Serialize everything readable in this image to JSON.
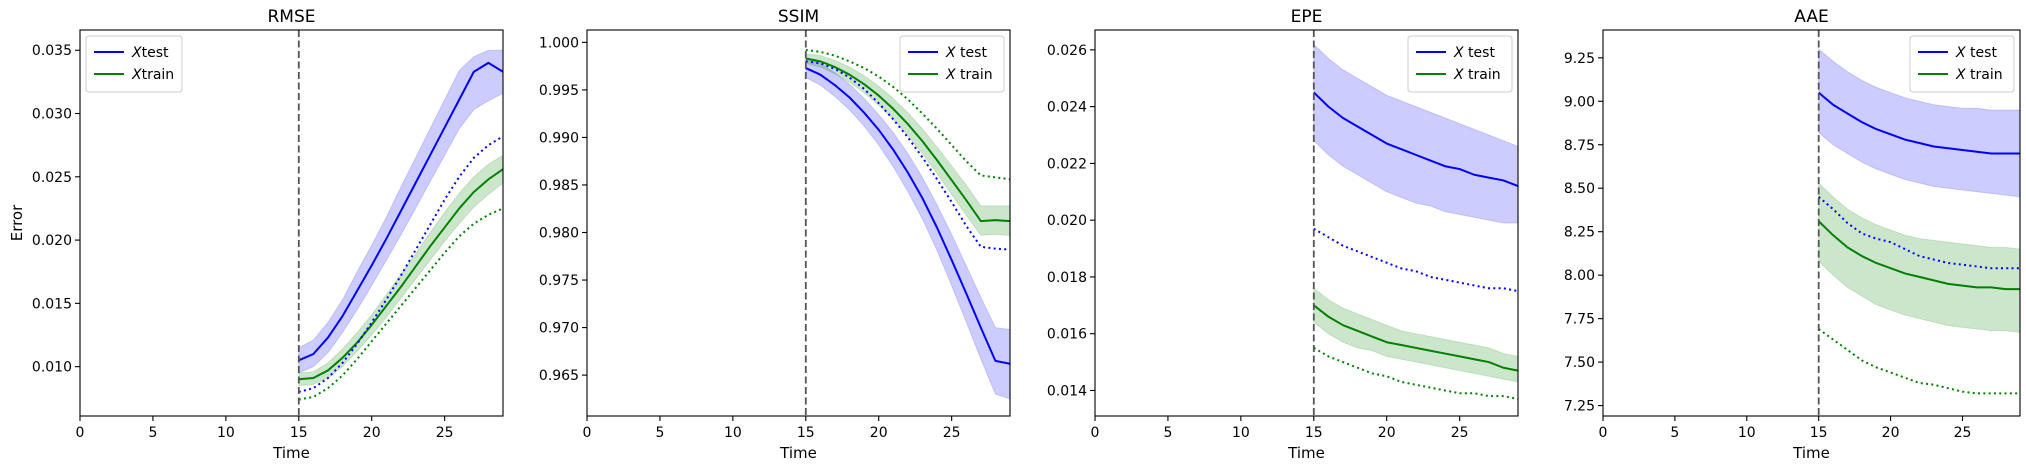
{
  "chart_data": [
    {
      "type": "line",
      "title": "RMSE",
      "xlabel": "Time",
      "ylabel": "Error",
      "xlim": [
        0,
        29
      ],
      "ylim": [
        0.0061,
        0.0366
      ],
      "xticks": [
        "0",
        "5",
        "10",
        "15",
        "20",
        "25"
      ],
      "yticks": [
        "0.010",
        "0.015",
        "0.020",
        "0.025",
        "0.030",
        "0.035"
      ],
      "legend_position": "upper-left",
      "vline_x": 15,
      "x": [
        15,
        16,
        17,
        18,
        19,
        20,
        21,
        22,
        23,
        24,
        25,
        26,
        27,
        28,
        29
      ],
      "series": [
        {
          "name": "Xtest",
          "label_style": "italic-x",
          "color": "#0000ff",
          "style": "solid",
          "values": [
            0.0105,
            0.011,
            0.0123,
            0.014,
            0.016,
            0.018,
            0.0201,
            0.0223,
            0.0245,
            0.0267,
            0.0289,
            0.0311,
            0.0333,
            0.034,
            0.0333
          ],
          "band_low": [
            0.0095,
            0.01,
            0.0111,
            0.0127,
            0.0145,
            0.0164,
            0.0184,
            0.0204,
            0.0225,
            0.0246,
            0.0267,
            0.0288,
            0.0303,
            0.031,
            0.0316
          ],
          "band_high": [
            0.0115,
            0.0121,
            0.0135,
            0.0153,
            0.0175,
            0.0196,
            0.0218,
            0.0242,
            0.0265,
            0.0288,
            0.0311,
            0.0334,
            0.0345,
            0.035,
            0.035
          ]
        },
        {
          "name": "Xtrain",
          "label_style": "italic-x",
          "color": "#008000",
          "style": "solid",
          "values": [
            0.009,
            0.0091,
            0.0097,
            0.0107,
            0.0119,
            0.0133,
            0.0148,
            0.0163,
            0.0179,
            0.0195,
            0.021,
            0.0225,
            0.0238,
            0.0248,
            0.0256
          ],
          "band_low": [
            0.0085,
            0.0086,
            0.0091,
            0.01,
            0.0112,
            0.0125,
            0.0139,
            0.0154,
            0.0169,
            0.0184,
            0.0199,
            0.0213,
            0.0226,
            0.0236,
            0.0245
          ],
          "band_high": [
            0.0095,
            0.0096,
            0.0103,
            0.0114,
            0.0127,
            0.0141,
            0.0157,
            0.0173,
            0.0189,
            0.0206,
            0.0222,
            0.0237,
            0.025,
            0.026,
            0.0267
          ]
        },
        {
          "name": "",
          "color": "#0000ff",
          "style": "dotted",
          "values": [
            0.008,
            0.0083,
            0.0091,
            0.0103,
            0.0118,
            0.0135,
            0.0153,
            0.0172,
            0.0192,
            0.0212,
            0.0232,
            0.025,
            0.0265,
            0.0275,
            0.0282
          ]
        },
        {
          "name": "",
          "color": "#008000",
          "style": "dotted",
          "values": [
            0.0074,
            0.0076,
            0.0083,
            0.0093,
            0.0106,
            0.012,
            0.0134,
            0.0148,
            0.0162,
            0.0176,
            0.019,
            0.0203,
            0.0213,
            0.022,
            0.0225
          ]
        }
      ]
    },
    {
      "type": "line",
      "title": "SSIM",
      "xlabel": "Time",
      "ylabel": "",
      "xlim": [
        0,
        29
      ],
      "ylim": [
        0.9607,
        1.0013
      ],
      "xticks": [
        "0",
        "5",
        "10",
        "15",
        "20",
        "25"
      ],
      "yticks": [
        "0.965",
        "0.970",
        "0.975",
        "0.980",
        "0.985",
        "0.990",
        "0.995",
        "1.000"
      ],
      "legend_position": "upper-right",
      "vline_x": 15,
      "x": [
        15,
        16,
        17,
        18,
        19,
        20,
        21,
        22,
        23,
        24,
        25,
        26,
        27,
        28,
        29
      ],
      "series": [
        {
          "name": "X test",
          "label_style": "italic-x",
          "color": "#0000ff",
          "style": "solid",
          "values": [
            0.9973,
            0.9966,
            0.9955,
            0.9942,
            0.9926,
            0.9908,
            0.9887,
            0.9863,
            0.9836,
            0.9805,
            0.9771,
            0.9736,
            0.97,
            0.9665,
            0.9662
          ],
          "band_low": [
            0.9963,
            0.9955,
            0.9943,
            0.9929,
            0.9912,
            0.9892,
            0.9869,
            0.9843,
            0.9814,
            0.9781,
            0.9744,
            0.9706,
            0.9667,
            0.963,
            0.9625
          ],
          "band_high": [
            0.9983,
            0.9978,
            0.9968,
            0.9956,
            0.9941,
            0.9924,
            0.9905,
            0.9883,
            0.9858,
            0.9829,
            0.9798,
            0.9765,
            0.9732,
            0.97,
            0.9698
          ]
        },
        {
          "name": "X train",
          "label_style": "italic-x",
          "color": "#008000",
          "style": "solid",
          "values": [
            0.9983,
            0.998,
            0.9974,
            0.9966,
            0.9956,
            0.9944,
            0.993,
            0.9914,
            0.9896,
            0.9876,
            0.9855,
            0.9834,
            0.9812,
            0.9813,
            0.9812
          ],
          "band_low": [
            0.9978,
            0.9974,
            0.9967,
            0.9958,
            0.9947,
            0.9934,
            0.9919,
            0.9902,
            0.9883,
            0.9862,
            0.984,
            0.9818,
            0.9797,
            0.9798,
            0.9797
          ],
          "band_high": [
            0.9988,
            0.9986,
            0.9981,
            0.9974,
            0.9965,
            0.9954,
            0.9941,
            0.9926,
            0.9909,
            0.989,
            0.987,
            0.985,
            0.9828,
            0.9828,
            0.9828
          ]
        },
        {
          "name": "",
          "color": "#0000ff",
          "style": "dotted",
          "values": [
            0.998,
            0.9978,
            0.9972,
            0.9963,
            0.9951,
            0.9936,
            0.9919,
            0.99,
            0.9879,
            0.9856,
            0.9832,
            0.9807,
            0.9785,
            0.9783,
            0.9782
          ]
        },
        {
          "name": "",
          "color": "#008000",
          "style": "dotted",
          "values": [
            0.9992,
            0.999,
            0.9986,
            0.998,
            0.9973,
            0.9964,
            0.9953,
            0.994,
            0.9925,
            0.9909,
            0.9892,
            0.9875,
            0.986,
            0.9858,
            0.9856
          ]
        }
      ]
    },
    {
      "type": "line",
      "title": "EPE",
      "xlabel": "Time",
      "ylabel": "",
      "xlim": [
        0,
        29
      ],
      "ylim": [
        0.0131,
        0.0267
      ],
      "xticks": [
        "0",
        "5",
        "10",
        "15",
        "20",
        "25"
      ],
      "yticks": [
        "0.014",
        "0.016",
        "0.018",
        "0.020",
        "0.022",
        "0.024",
        "0.026"
      ],
      "legend_position": "upper-right",
      "vline_x": 15,
      "x": [
        15,
        16,
        17,
        18,
        19,
        20,
        21,
        22,
        23,
        24,
        25,
        26,
        27,
        28,
        29
      ],
      "series": [
        {
          "name": "X test",
          "label_style": "italic-x",
          "color": "#0000ff",
          "style": "solid",
          "values": [
            0.0245,
            0.024,
            0.0236,
            0.0233,
            0.023,
            0.0227,
            0.0225,
            0.0223,
            0.0221,
            0.0219,
            0.0218,
            0.0216,
            0.0215,
            0.0214,
            0.0212
          ],
          "band_low": [
            0.0228,
            0.0223,
            0.0219,
            0.0216,
            0.0213,
            0.021,
            0.0208,
            0.0206,
            0.0205,
            0.0203,
            0.0202,
            0.0201,
            0.02,
            0.0199,
            0.0199
          ],
          "band_high": [
            0.0262,
            0.0257,
            0.0253,
            0.025,
            0.0247,
            0.0244,
            0.0242,
            0.024,
            0.0238,
            0.0236,
            0.0234,
            0.0232,
            0.023,
            0.0228,
            0.0226
          ]
        },
        {
          "name": "X train",
          "label_style": "italic-x",
          "color": "#008000",
          "style": "solid",
          "values": [
            0.017,
            0.0166,
            0.0163,
            0.0161,
            0.0159,
            0.0157,
            0.0156,
            0.0155,
            0.0154,
            0.0153,
            0.0152,
            0.0151,
            0.015,
            0.0148,
            0.0147
          ],
          "band_low": [
            0.0164,
            0.016,
            0.0157,
            0.0155,
            0.0154,
            0.0152,
            0.0151,
            0.015,
            0.0149,
            0.0148,
            0.0147,
            0.0146,
            0.0145,
            0.0144,
            0.0143
          ],
          "band_high": [
            0.0176,
            0.0172,
            0.0169,
            0.0167,
            0.0165,
            0.0163,
            0.0161,
            0.016,
            0.0159,
            0.0158,
            0.0157,
            0.0156,
            0.0155,
            0.0153,
            0.0152
          ]
        },
        {
          "name": "",
          "color": "#0000ff",
          "style": "dotted",
          "values": [
            0.0197,
            0.0194,
            0.0191,
            0.0189,
            0.0187,
            0.0185,
            0.0183,
            0.0182,
            0.018,
            0.0179,
            0.0178,
            0.0177,
            0.0176,
            0.0176,
            0.0175
          ]
        },
        {
          "name": "",
          "color": "#008000",
          "style": "dotted",
          "values": [
            0.0155,
            0.0152,
            0.015,
            0.0148,
            0.0146,
            0.0145,
            0.0143,
            0.0142,
            0.0141,
            0.014,
            0.0139,
            0.0139,
            0.0138,
            0.0138,
            0.0137
          ]
        }
      ]
    },
    {
      "type": "line",
      "title": "AAE",
      "xlabel": "Time",
      "ylabel": "",
      "xlim": [
        0,
        29
      ],
      "ylim": [
        7.19,
        9.41
      ],
      "xticks": [
        "0",
        "5",
        "10",
        "15",
        "20",
        "25"
      ],
      "yticks": [
        "7.25",
        "7.50",
        "7.75",
        "8.00",
        "8.25",
        "8.50",
        "8.75",
        "9.00",
        "9.25"
      ],
      "legend_position": "upper-right",
      "vline_x": 15,
      "x": [
        15,
        16,
        17,
        18,
        19,
        20,
        21,
        22,
        23,
        24,
        25,
        26,
        27,
        28,
        29
      ],
      "series": [
        {
          "name": "X test",
          "label_style": "italic-x",
          "color": "#0000ff",
          "style": "solid",
          "values": [
            9.05,
            8.98,
            8.93,
            8.88,
            8.84,
            8.81,
            8.78,
            8.76,
            8.74,
            8.73,
            8.72,
            8.71,
            8.7,
            8.7,
            8.7
          ],
          "band_low": [
            8.82,
            8.75,
            8.7,
            8.65,
            8.61,
            8.58,
            8.55,
            8.53,
            8.51,
            8.5,
            8.49,
            8.48,
            8.47,
            8.46,
            8.45
          ],
          "band_high": [
            9.3,
            9.23,
            9.17,
            9.12,
            9.08,
            9.05,
            9.02,
            9.0,
            8.98,
            8.97,
            8.96,
            8.96,
            8.95,
            8.95,
            8.95
          ]
        },
        {
          "name": "X train",
          "label_style": "italic-x",
          "color": "#008000",
          "style": "solid",
          "values": [
            8.31,
            8.23,
            8.16,
            8.11,
            8.07,
            8.04,
            8.01,
            7.99,
            7.97,
            7.95,
            7.94,
            7.93,
            7.93,
            7.92,
            7.92
          ],
          "band_low": [
            8.08,
            8.0,
            7.93,
            7.88,
            7.83,
            7.8,
            7.77,
            7.75,
            7.73,
            7.71,
            7.7,
            7.69,
            7.68,
            7.68,
            7.67
          ],
          "band_high": [
            8.53,
            8.45,
            8.38,
            8.33,
            8.29,
            8.26,
            8.23,
            8.21,
            8.2,
            8.19,
            8.18,
            8.17,
            8.16,
            8.16,
            8.15
          ]
        },
        {
          "name": "",
          "color": "#0000ff",
          "style": "dotted",
          "values": [
            8.45,
            8.38,
            8.3,
            8.24,
            8.21,
            8.19,
            8.15,
            8.11,
            8.09,
            8.07,
            8.06,
            8.05,
            8.04,
            8.04,
            8.04
          ]
        },
        {
          "name": "",
          "color": "#008000",
          "style": "dotted",
          "values": [
            7.69,
            7.63,
            7.57,
            7.51,
            7.47,
            7.44,
            7.41,
            7.38,
            7.37,
            7.35,
            7.33,
            7.32,
            7.32,
            7.32,
            7.32
          ]
        }
      ]
    }
  ]
}
